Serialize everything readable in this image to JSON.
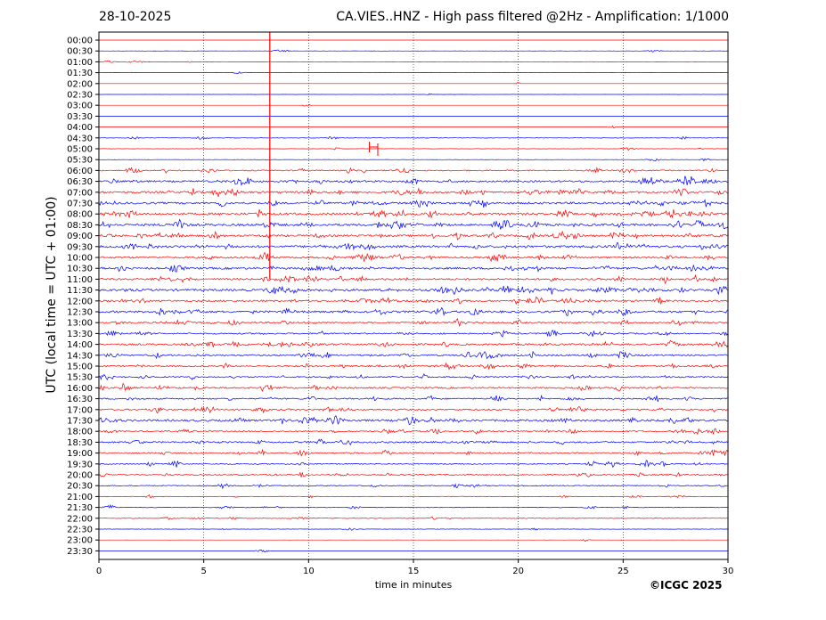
{
  "header": {
    "date": "28-10-2025",
    "title": "CA.VIES..HNZ - High pass filtered @2Hz - Amplification: 1/1000"
  },
  "footer": {
    "copyright": "©ICGC 2025"
  },
  "chart_data": {
    "type": "line",
    "xlabel": "time in minutes",
    "ylabel": "UTC (local time = UTC + 01:00)",
    "xlim": [
      0,
      30
    ],
    "x_ticks": [
      "0",
      "5",
      "10",
      "15",
      "20",
      "25",
      "30"
    ],
    "grid": "vertical dotted lines at 5, 10, 15, 20, 25 minutes",
    "series_colors": [
      "#ff0000",
      "#0000ff"
    ],
    "rows": [
      "00:00",
      "00:30",
      "01:00",
      "01:30",
      "02:00",
      "02:30",
      "03:00",
      "03:30",
      "04:00",
      "04:30",
      "05:00",
      "05:30",
      "06:00",
      "06:30",
      "07:00",
      "07:30",
      "08:00",
      "08:30",
      "09:00",
      "09:30",
      "10:00",
      "10:30",
      "11:00",
      "11:30",
      "12:00",
      "12:30",
      "13:00",
      "13:30",
      "14:00",
      "14:30",
      "15:00",
      "15:30",
      "16:00",
      "16:30",
      "17:00",
      "17:30",
      "18:00",
      "18:30",
      "19:00",
      "19:30",
      "20:00",
      "20:30",
      "21:00",
      "21:30",
      "22:00",
      "22:30",
      "23:00",
      "23:30"
    ],
    "trace_activity": [
      0.02,
      0.08,
      0.15,
      0.05,
      0.04,
      0.05,
      0.04,
      0.02,
      0.03,
      0.18,
      0.12,
      0.1,
      0.5,
      0.8,
      0.9,
      0.9,
      1.0,
      1.0,
      0.9,
      1.0,
      0.8,
      0.9,
      0.8,
      1.0,
      0.8,
      0.9,
      0.7,
      0.6,
      0.8,
      0.7,
      0.7,
      0.6,
      0.7,
      0.6,
      0.7,
      0.9,
      0.6,
      0.7,
      0.6,
      0.5,
      0.5,
      0.35,
      0.25,
      0.3,
      0.25,
      0.15,
      0.05,
      0.03
    ],
    "events": [
      {
        "row": "00:00",
        "start_min": 8.15,
        "end_min": 8.15,
        "color": "#ff0000",
        "note": "single spike across rows 00:00-11:00"
      },
      {
        "row": "05:00",
        "start_min": 12.9,
        "end_min": 13.3,
        "color": "#ff0000"
      }
    ]
  }
}
